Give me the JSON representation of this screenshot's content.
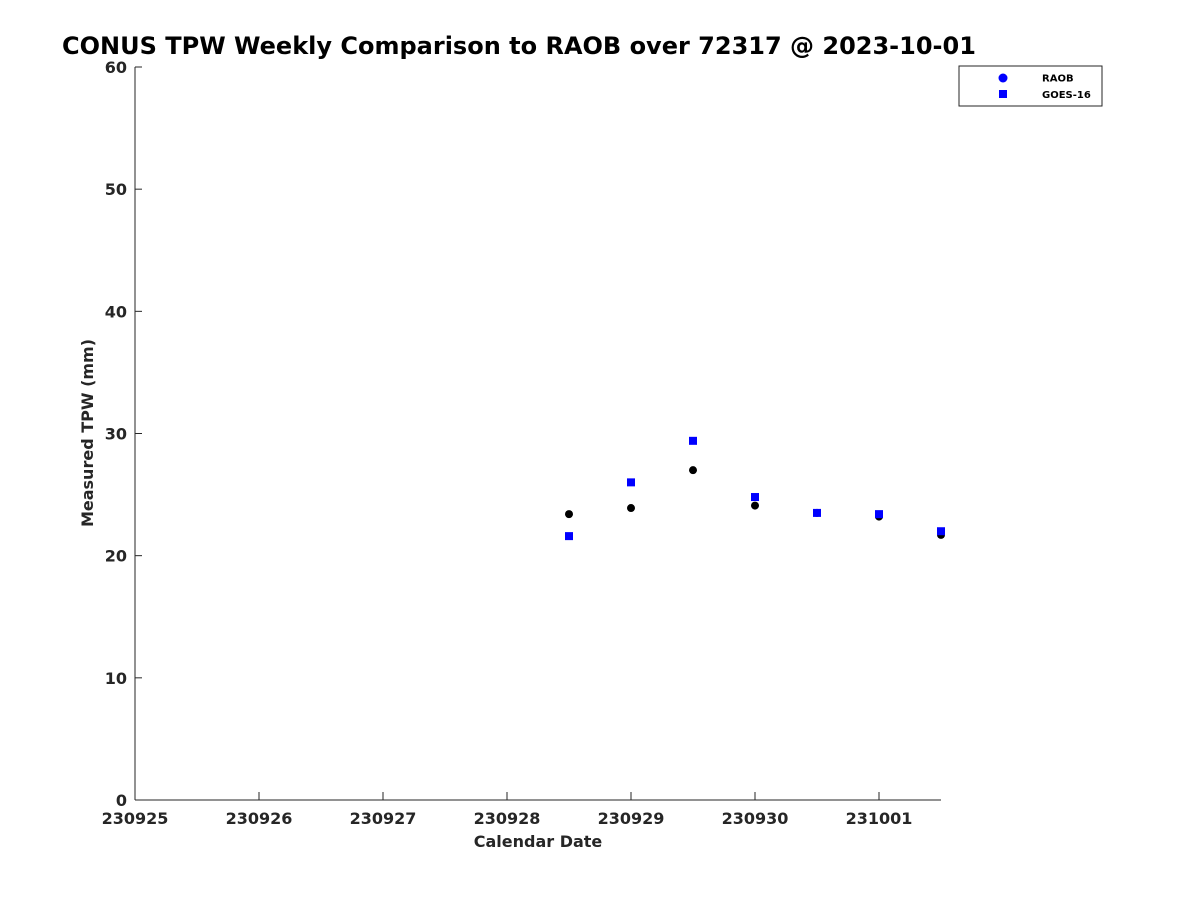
{
  "chart_data": {
    "type": "scatter",
    "title": "CONUS TPW Weekly Comparison to RAOB over 72317 @ 2023-10-01",
    "xlabel": "Calendar Date",
    "ylabel": "Measured TPW (mm)",
    "x_ticks": [
      "230925",
      "230926",
      "230927",
      "230928",
      "230929",
      "230930",
      "231001"
    ],
    "y_ticks": [
      "0",
      "10",
      "20",
      "30",
      "40",
      "50",
      "60"
    ],
    "xlim": [
      "2023-09-25 00:00",
      "2023-10-01 12:00"
    ],
    "ylim": [
      0,
      60
    ],
    "grid": false,
    "legend_position": "top-right",
    "legend_entries": [
      {
        "label": "RAOB",
        "marker": "circle",
        "color": "#0000ff"
      },
      {
        "label": "GOES-16",
        "marker": "square",
        "color": "#0000ff"
      }
    ],
    "series": [
      {
        "name": "RAOB",
        "marker": "circle",
        "color": "#000000",
        "x": [
          "2023-09-28 12:00",
          "2023-09-29 00:00",
          "2023-09-29 12:00",
          "2023-09-30 00:00",
          "2023-09-30 12:00",
          "2023-10-01 00:00",
          "2023-10-01 12:00"
        ],
        "y": [
          23.4,
          23.9,
          27.0,
          24.1,
          23.5,
          23.2,
          21.7
        ]
      },
      {
        "name": "GOES-16",
        "marker": "square",
        "color": "#0000ff",
        "x": [
          "2023-09-28 12:00",
          "2023-09-29 00:00",
          "2023-09-29 12:00",
          "2023-09-30 00:00",
          "2023-09-30 12:00",
          "2023-10-01 00:00",
          "2023-10-01 12:00"
        ],
        "y": [
          21.6,
          26.0,
          29.4,
          24.8,
          23.5,
          23.4,
          22.0
        ]
      }
    ]
  }
}
